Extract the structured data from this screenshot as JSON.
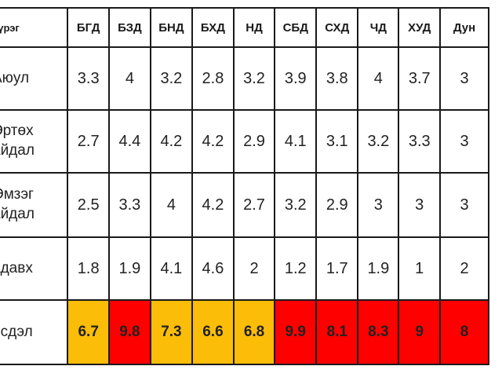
{
  "header": {
    "label": "үүрэг",
    "columns": [
      "БГД",
      "БЗД",
      "БНД",
      "БХД",
      "НД",
      "СБД",
      "СХД",
      "ЧД",
      "ХУД",
      "Дун"
    ]
  },
  "rows": [
    {
      "label": [
        "Аюул"
      ],
      "values": [
        "3.3",
        "4",
        "3.2",
        "2.8",
        "3.2",
        "3.9",
        "3.8",
        "4",
        "3.7",
        "3"
      ]
    },
    {
      "label": [
        "Эртөх",
        "айдал"
      ],
      "values": [
        "2.7",
        "4.4",
        "4.2",
        "4.2",
        "2.9",
        "4.1",
        "3.1",
        "3.2",
        "3.3",
        "3"
      ]
    },
    {
      "label": [
        "Өмзэг",
        "айдал"
      ],
      "values": [
        "2.5",
        "3.3",
        "4",
        "4.2",
        "2.7",
        "3.2",
        "2.9",
        "3",
        "3",
        "3"
      ]
    },
    {
      "label": [
        "адавх"
      ],
      "values": [
        "1.8",
        "1.9",
        "4.1",
        "4.6",
        "2",
        "1.2",
        "1.7",
        "1.9",
        "1",
        "2"
      ]
    },
    {
      "label": [
        "осдэл"
      ],
      "values": [
        "6.7",
        "9.8",
        "7.3",
        "6.6",
        "6.8",
        "9.9",
        "8.1",
        "8.3",
        "9",
        "8"
      ],
      "colors": [
        "orange",
        "red",
        "orange",
        "orange",
        "orange",
        "red",
        "red",
        "red",
        "red",
        "red"
      ]
    }
  ],
  "palette": {
    "orange": "#fbbd08",
    "red": "#ff0000"
  }
}
